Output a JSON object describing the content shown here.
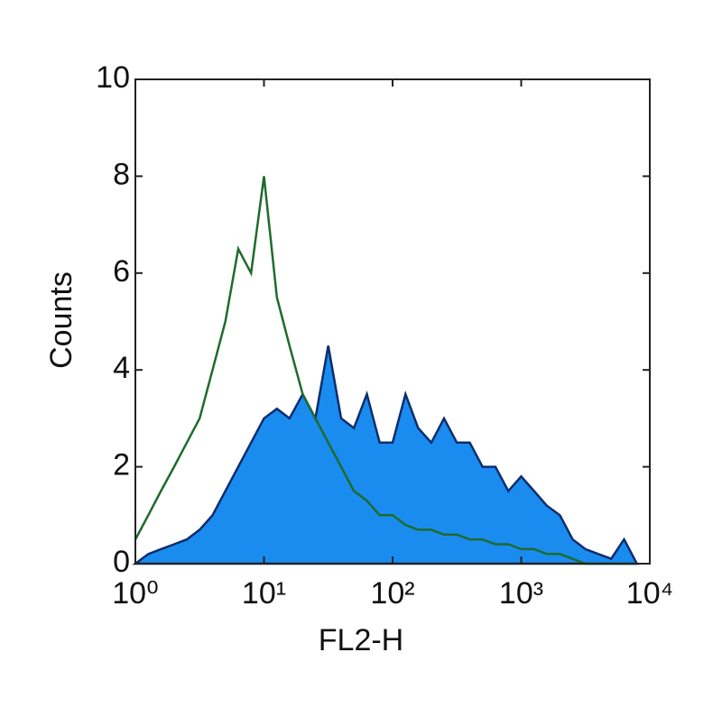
{
  "chart_data": {
    "type": "histogram",
    "xlabel": "FL2-H",
    "ylabel": "Counts",
    "xscale": "log",
    "xlim": [
      1,
      10000
    ],
    "xticks": [
      {
        "value": 1,
        "label": "10⁰"
      },
      {
        "value": 10,
        "label": "10¹"
      },
      {
        "value": 100,
        "label": "10²"
      },
      {
        "value": 1000,
        "label": "10³"
      },
      {
        "value": 10000,
        "label": "10⁴"
      }
    ],
    "ylim": [
      0,
      10
    ],
    "yticks": [
      0,
      2,
      4,
      6,
      8,
      10
    ],
    "x": [
      1,
      1.26,
      1.58,
      2.0,
      2.51,
      3.16,
      3.98,
      5.01,
      6.31,
      7.94,
      10,
      12.6,
      15.8,
      20.0,
      25.1,
      31.6,
      39.8,
      50.1,
      63.1,
      79.4,
      100,
      126,
      158,
      200,
      251,
      316,
      398,
      501,
      631,
      794,
      1000,
      1260,
      1580,
      2000,
      2510,
      3160,
      3980,
      5010,
      6310,
      7940
    ],
    "series": [
      {
        "color": "#1a8cf0",
        "edge_color": "#0d2d6e",
        "fill": true,
        "values": [
          0,
          0.2,
          0.3,
          0.4,
          0.5,
          0.7,
          1.0,
          1.5,
          2.0,
          2.5,
          3.0,
          3.2,
          3.0,
          3.5,
          3.0,
          4.5,
          3.0,
          2.8,
          3.5,
          2.5,
          2.5,
          3.5,
          2.8,
          2.5,
          3.0,
          2.5,
          2.5,
          2.0,
          2.0,
          1.5,
          1.8,
          1.5,
          1.2,
          1.0,
          0.5,
          0.3,
          0.2,
          0.1,
          0.5,
          0
        ]
      },
      {
        "color": "#1f6b2c",
        "fill": false,
        "values": [
          0.5,
          1.0,
          1.5,
          2.0,
          2.5,
          3.0,
          4.0,
          5.0,
          6.5,
          6.0,
          8.0,
          5.5,
          4.5,
          3.5,
          3.0,
          2.5,
          2.0,
          1.5,
          1.3,
          1.0,
          1.0,
          0.8,
          0.7,
          0.7,
          0.6,
          0.6,
          0.5,
          0.5,
          0.4,
          0.4,
          0.3,
          0.3,
          0.2,
          0.2,
          0.1,
          0,
          0,
          0,
          0,
          0
        ]
      }
    ]
  }
}
